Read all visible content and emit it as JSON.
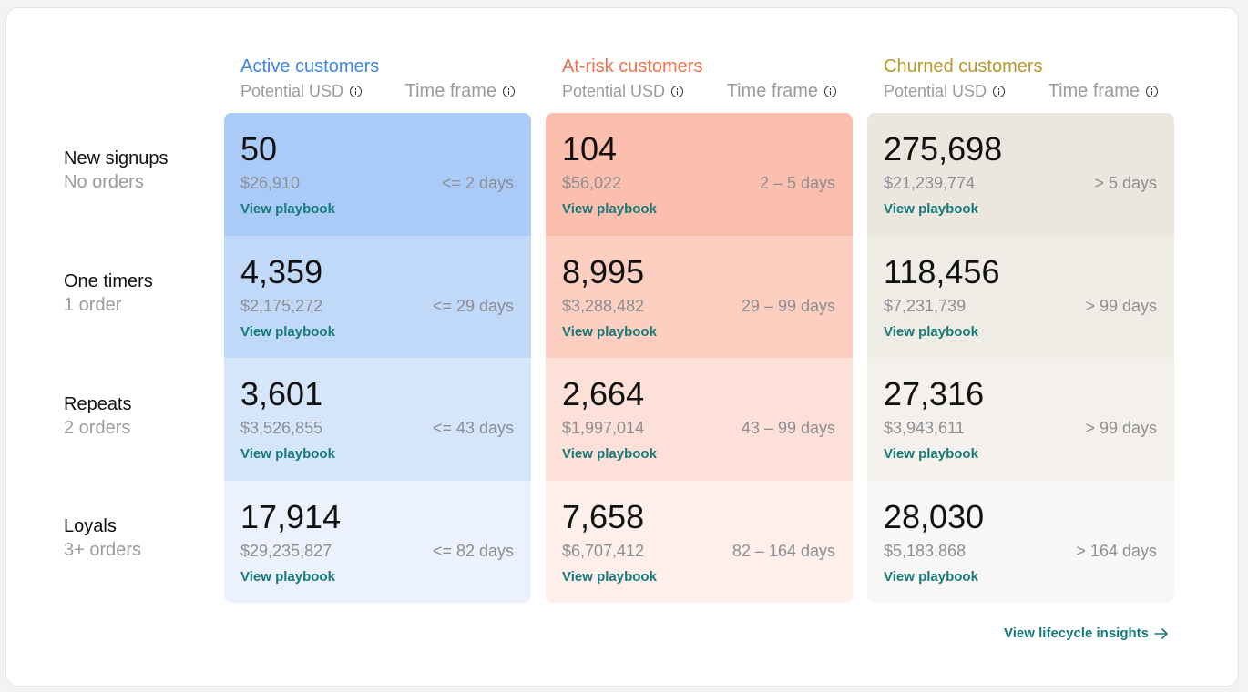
{
  "colors": {
    "active_title": "#3a86ea",
    "atrisk_title": "#f2704d",
    "churned_title": "#b9962a",
    "link": "#157a7a"
  },
  "columns": [
    {
      "title": "Active customers",
      "potential_label": "Potential USD",
      "timeframe_label": "Time frame",
      "cell_colors": [
        "#aacbf7",
        "#c0d9f8",
        "#d5e6fb",
        "#ebf2fd"
      ],
      "cells": [
        {
          "count": "50",
          "usd": "$26,910",
          "time": "<= 2 days",
          "link": "View playbook"
        },
        {
          "count": "4,359",
          "usd": "$2,175,272",
          "time": "<= 29 days",
          "link": "View playbook"
        },
        {
          "count": "3,601",
          "usd": "$3,526,855",
          "time": "<= 43 days",
          "link": "View playbook"
        },
        {
          "count": "17,914",
          "usd": "$29,235,827",
          "time": "<= 82 days",
          "link": "View playbook"
        }
      ]
    },
    {
      "title": "At-risk customers",
      "potential_label": "Potential USD",
      "timeframe_label": "Time frame",
      "cell_colors": [
        "#fdbfad",
        "#fdcfc1",
        "#fde0d7",
        "#feefeb"
      ],
      "cells": [
        {
          "count": "104",
          "usd": "$56,022",
          "time": "2 – 5 days",
          "link": "View playbook"
        },
        {
          "count": "8,995",
          "usd": "$3,288,482",
          "time": "29 – 99 days",
          "link": "View playbook"
        },
        {
          "count": "2,664",
          "usd": "$1,997,014",
          "time": "43 – 99 days",
          "link": "View playbook"
        },
        {
          "count": "7,658",
          "usd": "$6,707,412",
          "time": "82 – 164 days",
          "link": "View playbook"
        }
      ]
    },
    {
      "title": "Churned customers",
      "potential_label": "Potential USD",
      "timeframe_label": "Time frame",
      "cell_colors": [
        "#ebe6de",
        "#efebe5",
        "#f4f1ec",
        "#f9f7f5"
      ],
      "cells": [
        {
          "count": "275,698",
          "usd": "$21,239,774",
          "time": "> 5 days",
          "link": "View playbook"
        },
        {
          "count": "118,456",
          "usd": "$7,231,739",
          "time": "> 99 days",
          "link": "View playbook"
        },
        {
          "count": "27,316",
          "usd": "$3,943,611",
          "time": "> 99 days",
          "link": "View playbook"
        },
        {
          "count": "28,030",
          "usd": "$5,183,868",
          "time": "> 164 days",
          "link": "View playbook"
        }
      ]
    }
  ],
  "rows": [
    {
      "title": "New signups",
      "sub": "No orders"
    },
    {
      "title": "One timers",
      "sub": "1 order"
    },
    {
      "title": "Repeats",
      "sub": "2 orders"
    },
    {
      "title": "Loyals",
      "sub": "3+ orders"
    }
  ],
  "footer": {
    "link": "View lifecycle insights"
  }
}
